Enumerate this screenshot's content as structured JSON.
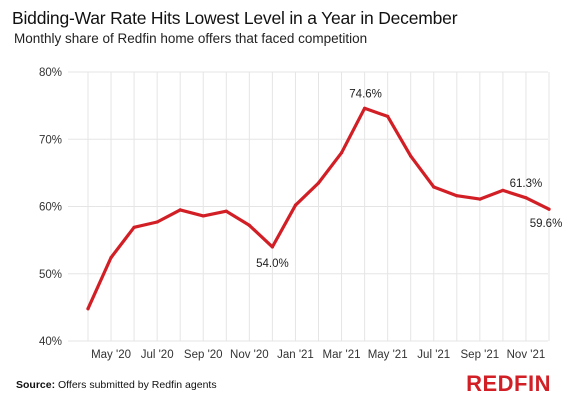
{
  "header": {
    "title": "Bidding-War Rate Hits Lowest Level in a Year in December",
    "subtitle": "Monthly share of Redfin home offers that faced competition"
  },
  "footer": {
    "source_label": "Source:",
    "source_text": "Offers submitted by Redfin agents",
    "brand": "REDFIN"
  },
  "colors": {
    "line": "#d21f26",
    "brand": "#d21f26",
    "grid": "#e5e5e5"
  },
  "chart_data": {
    "type": "line",
    "title": "Bidding-War Rate Hits Lowest Level in a Year in December",
    "subtitle": "Monthly share of Redfin home offers that faced competition",
    "xlabel": "",
    "ylabel": "",
    "ylim": [
      40,
      80
    ],
    "yticks": [
      40,
      50,
      60,
      70,
      80
    ],
    "ytick_labels": [
      "40%",
      "50%",
      "60%",
      "70%",
      "80%"
    ],
    "xtick_labels": [
      "May '20",
      "Jul '20",
      "Sep '20",
      "Nov '20",
      "Jan '21",
      "Mar '21",
      "May '21",
      "Jul '21",
      "Sep '21",
      "Nov '21"
    ],
    "grid": true,
    "x": [
      "Apr '20",
      "May '20",
      "Jun '20",
      "Jul '20",
      "Aug '20",
      "Sep '20",
      "Oct '20",
      "Nov '20",
      "Dec '20",
      "Jan '21",
      "Feb '21",
      "Mar '21",
      "Apr '21",
      "May '21",
      "Jun '21",
      "Jul '21",
      "Aug '21",
      "Sep '21",
      "Oct '21",
      "Nov '21",
      "Dec '21"
    ],
    "series": [
      {
        "values": [
          44.8,
          52.4,
          56.9,
          57.7,
          59.5,
          58.6,
          59.3,
          57.2,
          54.0,
          60.2,
          63.5,
          68.0,
          74.6,
          73.4,
          67.5,
          62.9,
          61.6,
          61.1,
          62.4,
          61.3,
          59.6
        ]
      }
    ],
    "annotations": [
      {
        "index": 8,
        "text": "54.0%"
      },
      {
        "index": 12,
        "text": "74.6%"
      },
      {
        "index": 19,
        "text": "61.3%"
      },
      {
        "index": 20,
        "text": "59.6%"
      }
    ]
  }
}
